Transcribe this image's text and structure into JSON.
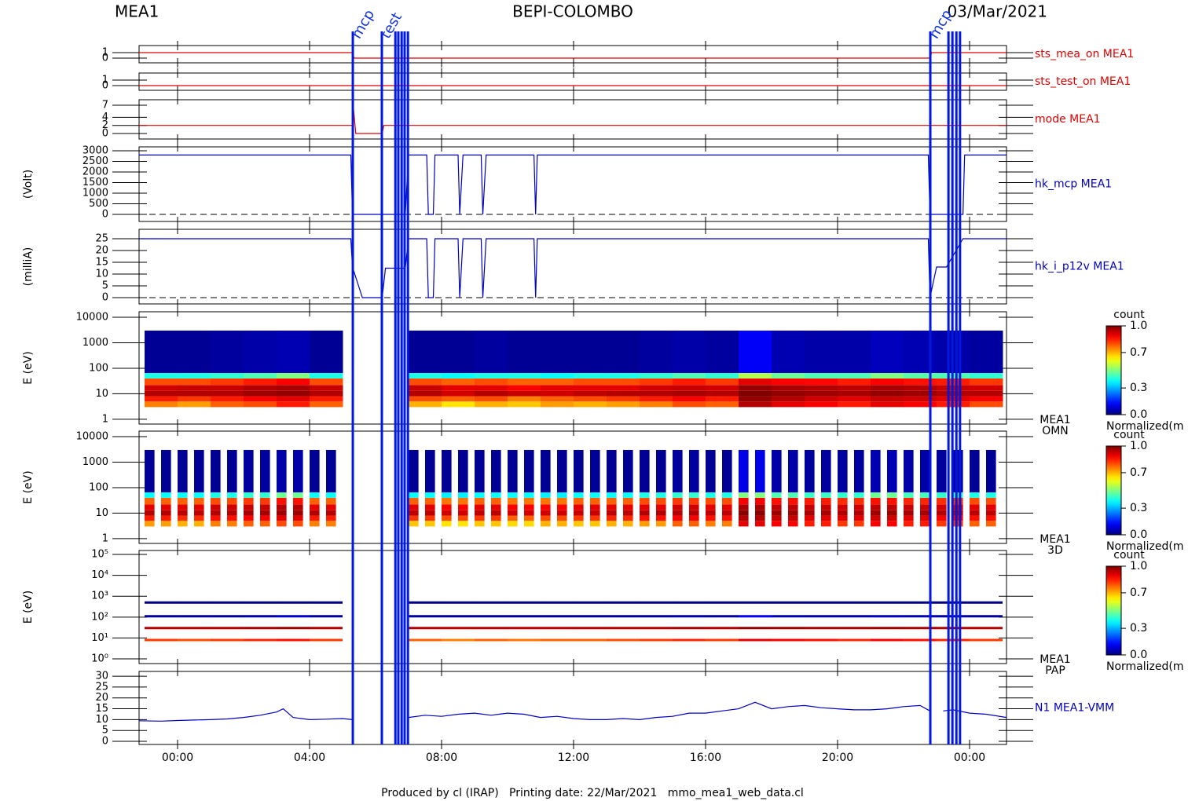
{
  "header": {
    "left": "MEA1",
    "center": "BEPI-COLOMBO",
    "right": "03/Mar/2021"
  },
  "footer": "Produced by cl (IRAP)   Printing date: 22/Mar/2021   mmo_mea1_web_data.cl",
  "xaxis": {
    "xlim": [
      -1.167,
      25.119
    ],
    "xticks": [
      {
        "value": 0,
        "label": "00:00"
      },
      {
        "value": 4,
        "label": "04:00"
      },
      {
        "value": 8,
        "label": "08:00"
      },
      {
        "value": 12,
        "label": "12:00"
      },
      {
        "value": 16,
        "label": "16:00"
      },
      {
        "value": 20,
        "label": "20:00"
      },
      {
        "value": 24,
        "label": "00:00"
      }
    ]
  },
  "events": [
    {
      "x": 5.31,
      "label": "mcp"
    },
    {
      "x": 6.19,
      "label": "test"
    },
    {
      "x": 6.6
    },
    {
      "x": 6.69
    },
    {
      "x": 6.79
    },
    {
      "x": 6.88
    },
    {
      "x": 6.98
    },
    {
      "x": 22.81,
      "label": "mcp"
    },
    {
      "x": 23.36
    },
    {
      "x": 23.48
    },
    {
      "x": 23.6
    },
    {
      "x": 23.71
    }
  ],
  "chart_data": [
    {
      "type": "line",
      "label": [
        "sts_mea_on MEA1"
      ],
      "color": "#e00000",
      "ylim": [
        -0.86,
        2.29
      ],
      "yticks": [
        0,
        1
      ],
      "x": [
        -1.167,
        5.3,
        5.35,
        22.8,
        22.85,
        25.119
      ],
      "values": [
        1,
        1,
        0,
        0,
        1,
        1
      ]
    },
    {
      "type": "line",
      "label": [
        "sts_test_on MEA1"
      ],
      "color": "#e00000",
      "ylim": [
        -0.86,
        2.29
      ],
      "yticks": [
        0,
        1
      ],
      "x": [
        -1.167,
        25.119
      ],
      "values": [
        0,
        0
      ]
    },
    {
      "type": "line",
      "label": [
        "mode MEA1"
      ],
      "color": "#e00000",
      "ylim": [
        -1.36,
        8.36
      ],
      "yticks": [
        0,
        2,
        4,
        7
      ],
      "x": [
        -1.167,
        5.3,
        5.32,
        5.4,
        6.2,
        6.25,
        25.119
      ],
      "values": [
        2,
        2,
        7,
        0,
        0,
        2,
        2
      ]
    },
    {
      "type": "line",
      "ylabel": "(Volt)",
      "label": [
        "hk_mcp MEA1"
      ],
      "color": "#0000c0",
      "ylim": [
        -333,
        3185
      ],
      "yticks": [
        0,
        500,
        1000,
        1500,
        2000,
        2500,
        3000
      ],
      "reference_line": 0,
      "x": [
        -1.167,
        5.25,
        5.3,
        6.9,
        7.0,
        7.55,
        7.6,
        7.75,
        7.8,
        8.5,
        8.55,
        8.65,
        9.2,
        9.25,
        9.35,
        10.8,
        10.85,
        10.9,
        22.75,
        22.8,
        23.8,
        23.85,
        25.119
      ],
      "values": [
        2800,
        2800,
        0,
        0,
        2800,
        2800,
        0,
        0,
        2800,
        2800,
        0,
        2800,
        2800,
        0,
        2800,
        2800,
        0,
        2800,
        2800,
        0,
        0,
        2800,
        2800
      ]
    },
    {
      "type": "line",
      "ylabel": "(milliA)",
      "label": [
        "hk_i_p12v MEA1"
      ],
      "color": "#0000c0",
      "ylim": [
        -2.67,
        29
      ],
      "yticks": [
        0,
        5,
        10,
        15,
        20,
        25
      ],
      "reference_line": 0,
      "x": [
        -1.167,
        5.25,
        5.3,
        5.6,
        6.2,
        6.3,
        6.9,
        7.0,
        7.55,
        7.6,
        7.75,
        7.8,
        8.5,
        8.55,
        8.65,
        9.2,
        9.25,
        9.35,
        10.8,
        10.85,
        10.9,
        22.75,
        22.8,
        23.0,
        23.3,
        23.8,
        25.119
      ],
      "values": [
        25,
        25,
        13,
        0,
        0,
        12.5,
        12.5,
        25,
        25,
        0,
        0,
        25,
        25,
        0,
        25,
        25,
        0,
        25,
        25,
        0,
        25,
        25,
        0,
        13,
        13,
        25,
        25
      ]
    },
    {
      "type": "spectrogram",
      "ylabel": "E (eV)",
      "label": [
        "MEA1",
        "OMN"
      ],
      "log": true,
      "ylim": [
        0.65,
        16400
      ],
      "yticks": [
        1,
        10,
        100,
        1000,
        10000
      ],
      "bins": [
        -1,
        0,
        1,
        2,
        3,
        4,
        5,
        6,
        7,
        8,
        9,
        10,
        11,
        12,
        13,
        14,
        15,
        16,
        17,
        18,
        19,
        20,
        21,
        22,
        23,
        24,
        25
      ],
      "energy_bins": [
        3,
        5,
        8,
        13,
        22,
        40,
        65,
        3000
      ],
      "rows": [
        [
          0.75,
          0.72,
          0.78,
          0.8,
          0.85,
          0.78,
          null,
          null,
          0.7,
          0.65,
          0.7,
          0.68,
          0.72,
          0.7,
          0.72,
          0.75,
          0.8,
          0.78,
          0.95,
          0.9,
          0.88,
          0.85,
          0.9,
          0.88,
          0.85,
          0.8
        ],
        [
          0.85,
          0.82,
          0.85,
          0.88,
          0.9,
          0.85,
          null,
          null,
          0.8,
          0.78,
          0.8,
          0.75,
          0.78,
          0.8,
          0.82,
          0.85,
          0.88,
          0.85,
          0.98,
          0.95,
          0.92,
          0.9,
          0.93,
          0.92,
          0.9,
          0.88
        ],
        [
          0.95,
          0.95,
          0.95,
          0.97,
          0.98,
          0.95,
          null,
          null,
          0.95,
          0.92,
          0.95,
          0.93,
          0.92,
          0.94,
          0.95,
          0.95,
          0.96,
          0.95,
          1.0,
          0.98,
          0.97,
          0.96,
          0.98,
          0.97,
          0.95,
          0.95
        ],
        [
          0.92,
          0.93,
          0.93,
          0.95,
          0.96,
          0.93,
          null,
          null,
          0.93,
          0.9,
          0.9,
          0.88,
          0.9,
          0.9,
          0.9,
          0.92,
          0.93,
          0.92,
          0.98,
          0.96,
          0.95,
          0.94,
          0.96,
          0.95,
          0.93,
          0.92
        ],
        [
          0.8,
          0.8,
          0.82,
          0.85,
          0.88,
          0.8,
          null,
          null,
          0.8,
          0.78,
          0.8,
          0.78,
          0.78,
          0.8,
          0.8,
          0.82,
          0.85,
          0.82,
          0.9,
          0.88,
          0.87,
          0.85,
          0.88,
          0.86,
          0.85,
          0.82
        ],
        [
          0.4,
          0.4,
          0.42,
          0.45,
          0.5,
          0.4,
          null,
          null,
          0.4,
          0.38,
          0.4,
          0.4,
          0.38,
          0.4,
          0.4,
          0.42,
          0.45,
          0.42,
          0.55,
          0.48,
          0.45,
          0.45,
          0.5,
          0.46,
          0.45,
          0.42
        ],
        [
          0.02,
          0.02,
          0.03,
          0.04,
          0.05,
          0.02,
          null,
          null,
          0.02,
          0.02,
          0.03,
          0.02,
          0.02,
          0.02,
          0.02,
          0.03,
          0.04,
          0.03,
          0.12,
          0.05,
          0.04,
          0.04,
          0.06,
          0.05,
          0.04,
          0.03
        ]
      ]
    },
    {
      "type": "spectrogram",
      "striped": true,
      "ylabel": "E (eV)",
      "label": [
        "MEA1",
        "3D"
      ],
      "log": true,
      "ylim": [
        0.65,
        16400
      ],
      "yticks": [
        1,
        10,
        100,
        1000,
        10000
      ],
      "bins": [
        -1,
        0,
        1,
        2,
        3,
        4,
        5,
        6,
        7,
        8,
        9,
        10,
        11,
        12,
        13,
        14,
        15,
        16,
        17,
        18,
        19,
        20,
        21,
        22,
        23,
        24,
        25
      ],
      "energy_bins": [
        3,
        5,
        8,
        13,
        22,
        40,
        65,
        3000
      ],
      "rows": [
        [
          0.72,
          0.7,
          0.75,
          0.78,
          0.8,
          0.75,
          null,
          null,
          0.68,
          0.65,
          0.68,
          0.66,
          0.7,
          0.68,
          0.7,
          0.72,
          0.78,
          0.75,
          0.9,
          0.88,
          0.85,
          0.82,
          0.88,
          0.85,
          0.82,
          0.78
        ],
        [
          0.85,
          0.83,
          0.86,
          0.88,
          0.9,
          0.85,
          null,
          null,
          0.82,
          0.8,
          0.82,
          0.78,
          0.8,
          0.82,
          0.84,
          0.86,
          0.88,
          0.86,
          0.95,
          0.93,
          0.9,
          0.9,
          0.92,
          0.9,
          0.88,
          0.86
        ],
        [
          0.95,
          0.94,
          0.95,
          0.96,
          0.97,
          0.95,
          null,
          null,
          0.94,
          0.92,
          0.94,
          0.92,
          0.92,
          0.93,
          0.94,
          0.95,
          0.95,
          0.94,
          0.99,
          0.97,
          0.96,
          0.95,
          0.97,
          0.96,
          0.95,
          0.94
        ],
        [
          0.9,
          0.9,
          0.92,
          0.93,
          0.95,
          0.9,
          null,
          null,
          0.9,
          0.88,
          0.9,
          0.88,
          0.88,
          0.9,
          0.9,
          0.9,
          0.92,
          0.9,
          0.96,
          0.94,
          0.93,
          0.92,
          0.94,
          0.93,
          0.92,
          0.9
        ],
        [
          0.78,
          0.78,
          0.8,
          0.82,
          0.86,
          0.78,
          null,
          null,
          0.78,
          0.76,
          0.78,
          0.76,
          0.76,
          0.78,
          0.78,
          0.8,
          0.82,
          0.8,
          0.88,
          0.86,
          0.85,
          0.83,
          0.86,
          0.84,
          0.83,
          0.8
        ],
        [
          0.38,
          0.38,
          0.4,
          0.42,
          0.48,
          0.38,
          null,
          null,
          0.38,
          0.36,
          0.38,
          0.38,
          0.36,
          0.38,
          0.38,
          0.4,
          0.42,
          0.4,
          0.5,
          0.45,
          0.43,
          0.42,
          0.48,
          0.44,
          0.42,
          0.4
        ],
        [
          0.02,
          0.02,
          0.02,
          0.03,
          0.04,
          0.02,
          null,
          null,
          0.02,
          0.02,
          0.02,
          0.02,
          0.02,
          0.02,
          0.02,
          0.02,
          0.03,
          0.02,
          0.1,
          0.04,
          0.03,
          0.03,
          0.05,
          0.04,
          0.03,
          0.02
        ]
      ]
    },
    {
      "type": "bands",
      "ylabel": "E (eV)",
      "label": [
        "MEA1",
        "PAP"
      ],
      "log": true,
      "ylim": [
        0.594,
        155000
      ],
      "yticks": [
        {
          "value": 1,
          "label": "10⁰"
        },
        {
          "value": 10,
          "label": "10¹"
        },
        {
          "value": 100,
          "label": "10²"
        },
        {
          "value": 1000,
          "label": "10³"
        },
        {
          "value": 10000,
          "label": "10⁴"
        },
        {
          "value": 100000,
          "label": "10⁵"
        }
      ],
      "bins": [
        -1,
        0,
        1,
        2,
        3,
        4,
        5,
        6,
        7,
        8,
        9,
        10,
        11,
        12,
        13,
        14,
        15,
        16,
        17,
        18,
        19,
        20,
        21,
        22,
        23,
        24,
        25
      ],
      "bands": [
        {
          "energy": 8,
          "values": [
            0.82,
            0.8,
            0.82,
            0.84,
            0.86,
            0.82,
            null,
            null,
            0.78,
            0.75,
            0.78,
            0.76,
            0.78,
            0.78,
            0.8,
            0.82,
            0.84,
            0.82,
            0.9,
            0.88,
            0.86,
            0.84,
            0.88,
            0.86,
            0.84,
            0.82
          ]
        },
        {
          "energy": 30,
          "values": [
            0.95,
            0.95,
            0.95,
            0.96,
            0.97,
            0.95,
            null,
            null,
            0.95,
            0.94,
            0.95,
            0.94,
            0.94,
            0.95,
            0.95,
            0.95,
            0.96,
            0.95,
            0.98,
            0.97,
            0.96,
            0.96,
            0.97,
            0.96,
            0.95,
            0.95
          ]
        },
        {
          "energy": 110,
          "values": [
            0.03,
            0.03,
            0.03,
            0.04,
            0.08,
            0.03,
            null,
            null,
            0.03,
            0.03,
            0.03,
            0.03,
            0.03,
            0.03,
            0.03,
            0.03,
            0.04,
            0.03,
            0.12,
            0.05,
            0.04,
            0.04,
            0.06,
            0.05,
            0.04,
            0.03
          ]
        },
        {
          "energy": 500,
          "values": [
            0.0,
            0.0,
            0.0,
            0.0,
            0.0,
            0.0,
            null,
            null,
            0.0,
            0.0,
            0.0,
            0.0,
            0.0,
            0.0,
            0.0,
            0.0,
            0.0,
            0.0,
            0.0,
            0.0,
            0.0,
            0.0,
            0.0,
            0.0,
            0.0,
            0.0
          ]
        }
      ]
    },
    {
      "type": "line",
      "label": [
        "N1 MEA1-VMM"
      ],
      "color": "#0000c0",
      "ylim": [
        -1.44,
        32.2
      ],
      "yticks": [
        0,
        5,
        10,
        15,
        20,
        25,
        30
      ],
      "x": [
        -1.167,
        -0.5,
        0,
        0.5,
        1,
        1.5,
        2,
        2.5,
        3,
        3.2,
        3.5,
        4,
        4.5,
        5,
        5.3,
        5.4,
        7,
        7.5,
        8,
        8.5,
        9,
        9.5,
        10,
        10.5,
        11,
        11.5,
        12,
        12.5,
        13,
        13.5,
        14,
        14.5,
        15,
        15.5,
        16,
        16.5,
        17,
        17.5,
        18,
        18.5,
        19,
        19.5,
        20,
        20.5,
        21,
        21.5,
        22,
        22.5,
        22.8,
        22.9,
        23.2,
        23.5,
        24,
        24.5,
        25.119
      ],
      "values": [
        9.5,
        9.3,
        9.6,
        9.8,
        10,
        10.3,
        11,
        12,
        13.5,
        15,
        11,
        10,
        10.2,
        10.5,
        10,
        null,
        11,
        12,
        11.5,
        12.5,
        13,
        12,
        13,
        12.5,
        11,
        11.5,
        10.5,
        10,
        10,
        10.5,
        10,
        11,
        11.5,
        13,
        13,
        14,
        15,
        18,
        15,
        16,
        16.5,
        15.5,
        15,
        14.5,
        14.5,
        15,
        16,
        16.5,
        14,
        null,
        14,
        14.5,
        13,
        12.5,
        11
      ]
    }
  ],
  "colorbars": [
    {
      "title": "count",
      "label": "Normalized(m",
      "ticks": [
        {
          "value": 0,
          "label": "0.0"
        },
        {
          "value": 0.3,
          "label": "0.3"
        },
        {
          "value": 0.7,
          "label": "0.7"
        },
        {
          "value": 1,
          "label": "1.0"
        }
      ]
    },
    {
      "title": "count",
      "label": "Normalized(m",
      "ticks": [
        {
          "value": 0,
          "label": "0.0"
        },
        {
          "value": 0.3,
          "label": "0.3"
        },
        {
          "value": 0.7,
          "label": "0.7"
        },
        {
          "value": 1,
          "label": "1.0"
        }
      ]
    },
    {
      "title": "count",
      "label": "Normalized(m",
      "ticks": [
        {
          "value": 0,
          "label": "0.0"
        },
        {
          "value": 0.3,
          "label": "0.3"
        },
        {
          "value": 0.7,
          "label": "0.7"
        },
        {
          "value": 1,
          "label": "1.0"
        }
      ]
    }
  ]
}
